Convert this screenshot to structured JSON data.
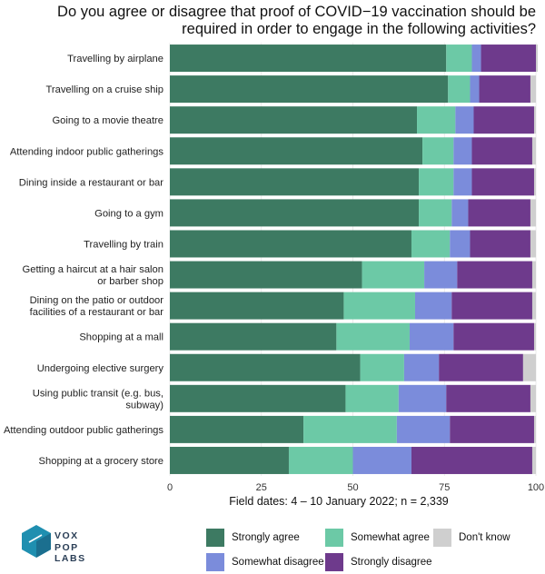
{
  "title": "Do you agree or disagree that proof of COVID−19 vaccination should be required in order to engage in the following activities?",
  "logo_text": [
    "VOX",
    "POP",
    "LABS"
  ],
  "chart_data": {
    "type": "bar",
    "orientation": "horizontal",
    "stacked": true,
    "title": "Do you agree or disagree that proof of COVID−19 vaccination should be required in order to engage in the following activities?",
    "xlabel": "Field dates: 4 – 10 January 2022; n = 2,339",
    "xlim": [
      0,
      100
    ],
    "xticks": [
      0,
      25,
      50,
      75,
      100
    ],
    "grid": true,
    "legend_position": "bottom",
    "categories": [
      "Travelling by airplane",
      "Travelling on a cruise ship",
      "Going to a movie theatre",
      "Attending indoor public gatherings",
      "Dining inside a restaurant or bar",
      "Going to a gym",
      "Travelling by train",
      "Getting a haircut at a hair salon or barber shop",
      "Dining on the patio or outdoor facilities of a restaurant or bar",
      "Shopping at a mall",
      "Undergoing elective surgery",
      "Using public transit (e.g. bus, subway)",
      "Attending outdoor public gatherings",
      "Shopping at a grocery store"
    ],
    "category_lines": [
      [
        "Travelling by airplane"
      ],
      [
        "Travelling on a cruise ship"
      ],
      [
        "Going to a movie theatre"
      ],
      [
        "Attending indoor public gatherings"
      ],
      [
        "Dining inside a restaurant or bar"
      ],
      [
        "Going to a gym"
      ],
      [
        "Travelling by train"
      ],
      [
        "Getting a haircut at a hair salon",
        "or barber shop"
      ],
      [
        "Dining on the patio or outdoor",
        "facilities of a restaurant or bar"
      ],
      [
        "Shopping at a mall"
      ],
      [
        "Undergoing elective surgery"
      ],
      [
        "Using public transit (e.g. bus,",
        "subway)"
      ],
      [
        "Attending outdoor public gatherings"
      ],
      [
        "Shopping at a grocery store"
      ]
    ],
    "series": [
      {
        "name": "Strongly agree",
        "color": "#3d7a62",
        "values": [
          75.5,
          76,
          67.5,
          69,
          68,
          68,
          66,
          52.5,
          47.5,
          45.5,
          52,
          48,
          36.5,
          32.5
        ]
      },
      {
        "name": "Somewhat agree",
        "color": "#6cc9a6",
        "values": [
          7,
          6,
          10.5,
          8.5,
          9.5,
          9,
          10.5,
          17,
          19.5,
          20,
          12,
          14.5,
          25.5,
          17.5
        ]
      },
      {
        "name": "Somewhat disagree",
        "color": "#7b8cdb",
        "values": [
          2.5,
          2.5,
          5,
          5,
          5,
          4.5,
          5.5,
          9,
          10,
          12,
          9.5,
          13,
          14.5,
          16
        ]
      },
      {
        "name": "Strongly disagree",
        "color": "#6e3a8c",
        "values": [
          15,
          14,
          16.5,
          16.5,
          17,
          17,
          16.5,
          20.5,
          22,
          22,
          23,
          23,
          23,
          33
        ]
      },
      {
        "name": "Don't know",
        "color": "#cfcfcf",
        "values": [
          0.5,
          1.5,
          0.5,
          1,
          0.5,
          1.5,
          1.5,
          1,
          1,
          0.5,
          3.5,
          1.5,
          0.5,
          1
        ]
      }
    ],
    "legend_order": [
      "Strongly agree",
      "Somewhat agree",
      "Don't know",
      "Somewhat disagree",
      "Strongly disagree"
    ]
  }
}
